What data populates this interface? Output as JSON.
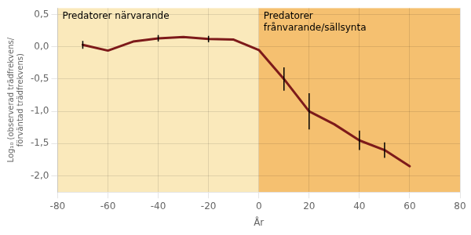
{
  "chart_data": {
    "type": "line",
    "xlabel": "År",
    "ylabel": [
      "Log₁₀ (observerad trädfrekvens/",
      "förväntad trädfrekvens)"
    ],
    "x": [
      -70,
      -60,
      -50,
      -40,
      -30,
      -20,
      -10,
      0,
      10,
      20,
      30,
      40,
      50,
      60
    ],
    "values": [
      0.03,
      -0.06,
      0.08,
      0.13,
      0.15,
      0.12,
      0.11,
      -0.05,
      -0.5,
      -1.0,
      -1.2,
      -1.45,
      -1.6,
      -1.85
    ],
    "errors": [
      0.06,
      0.0,
      0.0,
      0.05,
      0.0,
      0.05,
      0.0,
      0.0,
      0.18,
      0.28,
      0.0,
      0.15,
      0.12,
      0.0
    ],
    "color": "#7D1A1A",
    "marker": "none",
    "xlim": [
      -80,
      80
    ],
    "xticks": [
      -80,
      -60,
      -40,
      -20,
      0,
      20,
      40,
      60,
      80
    ],
    "ylim": [
      -2.25,
      0.6
    ],
    "yticks": [
      {
        "value": -2.0,
        "label": "-2,0"
      },
      {
        "value": -1.5,
        "label": "-1,5"
      },
      {
        "value": -1.0,
        "label": "-1,0"
      },
      {
        "value": -0.5,
        "label": "-0,5"
      },
      {
        "value": 0.0,
        "label": "0,0"
      },
      {
        "value": 0.5,
        "label": "0,5"
      }
    ],
    "grid": true,
    "regions": [
      {
        "from": -80,
        "to": 0,
        "color": "#FAE9BB",
        "label": "Predatorer närvarande"
      },
      {
        "from": 0,
        "to": 80,
        "color": "#F5C070",
        "label": "Predatorer\nfrånvarande/sällsynta"
      }
    ]
  }
}
